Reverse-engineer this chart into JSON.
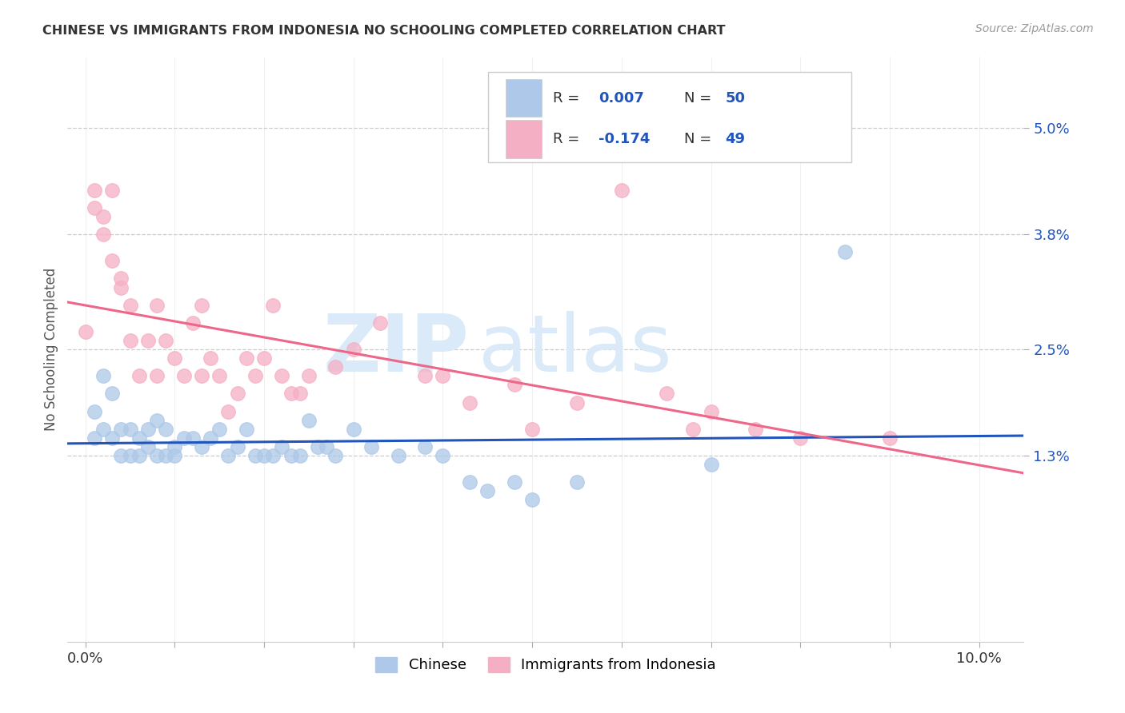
{
  "title": "CHINESE VS IMMIGRANTS FROM INDONESIA NO SCHOOLING COMPLETED CORRELATION CHART",
  "source": "Source: ZipAtlas.com",
  "ylabel": "No Schooling Completed",
  "ytick_labels": [
    "1.3%",
    "2.5%",
    "3.8%",
    "5.0%"
  ],
  "ytick_values": [
    0.013,
    0.025,
    0.038,
    0.05
  ],
  "xtick_values": [
    0.0,
    0.01,
    0.02,
    0.03,
    0.04,
    0.05,
    0.06,
    0.07,
    0.08,
    0.09,
    0.1
  ],
  "xmin": -0.002,
  "xmax": 0.105,
  "ymin": -0.008,
  "ymax": 0.058,
  "chinese_R": 0.007,
  "chinese_N": 50,
  "indonesia_R": -0.174,
  "indonesia_N": 49,
  "chinese_color": "#adc8e8",
  "indonesia_color": "#f5afc4",
  "chinese_line_color": "#2255bb",
  "indonesia_line_color": "#ee6688",
  "legend_R_color": "#333333",
  "legend_N_color": "#2255bb",
  "watermark_zip": "ZIP",
  "watermark_atlas": "atlas",
  "watermark_color": "#daeaf8",
  "background_color": "#ffffff",
  "chinese_x": [
    0.001,
    0.001,
    0.002,
    0.002,
    0.003,
    0.003,
    0.004,
    0.004,
    0.005,
    0.005,
    0.006,
    0.006,
    0.007,
    0.007,
    0.008,
    0.008,
    0.009,
    0.009,
    0.01,
    0.01,
    0.011,
    0.012,
    0.013,
    0.014,
    0.015,
    0.016,
    0.017,
    0.018,
    0.019,
    0.02,
    0.021,
    0.022,
    0.023,
    0.024,
    0.025,
    0.026,
    0.027,
    0.028,
    0.03,
    0.032,
    0.035,
    0.038,
    0.04,
    0.043,
    0.045,
    0.048,
    0.05,
    0.055,
    0.07,
    0.085
  ],
  "chinese_y": [
    0.018,
    0.015,
    0.022,
    0.016,
    0.02,
    0.015,
    0.016,
    0.013,
    0.016,
    0.013,
    0.015,
    0.013,
    0.016,
    0.014,
    0.017,
    0.013,
    0.016,
    0.013,
    0.014,
    0.013,
    0.015,
    0.015,
    0.014,
    0.015,
    0.016,
    0.013,
    0.014,
    0.016,
    0.013,
    0.013,
    0.013,
    0.014,
    0.013,
    0.013,
    0.017,
    0.014,
    0.014,
    0.013,
    0.016,
    0.014,
    0.013,
    0.014,
    0.013,
    0.01,
    0.009,
    0.01,
    0.008,
    0.01,
    0.012,
    0.036
  ],
  "indonesia_x": [
    0.0,
    0.001,
    0.001,
    0.002,
    0.002,
    0.003,
    0.003,
    0.004,
    0.004,
    0.005,
    0.005,
    0.006,
    0.007,
    0.008,
    0.008,
    0.009,
    0.01,
    0.011,
    0.012,
    0.013,
    0.013,
    0.014,
    0.015,
    0.016,
    0.017,
    0.018,
    0.019,
    0.02,
    0.021,
    0.022,
    0.023,
    0.024,
    0.025,
    0.028,
    0.03,
    0.033,
    0.038,
    0.04,
    0.043,
    0.048,
    0.05,
    0.055,
    0.06,
    0.065,
    0.068,
    0.07,
    0.075,
    0.08,
    0.09
  ],
  "indonesia_y": [
    0.027,
    0.043,
    0.041,
    0.04,
    0.038,
    0.043,
    0.035,
    0.033,
    0.032,
    0.03,
    0.026,
    0.022,
    0.026,
    0.022,
    0.03,
    0.026,
    0.024,
    0.022,
    0.028,
    0.022,
    0.03,
    0.024,
    0.022,
    0.018,
    0.02,
    0.024,
    0.022,
    0.024,
    0.03,
    0.022,
    0.02,
    0.02,
    0.022,
    0.023,
    0.025,
    0.028,
    0.022,
    0.022,
    0.019,
    0.021,
    0.016,
    0.019,
    0.043,
    0.02,
    0.016,
    0.018,
    0.016,
    0.015,
    0.015
  ]
}
